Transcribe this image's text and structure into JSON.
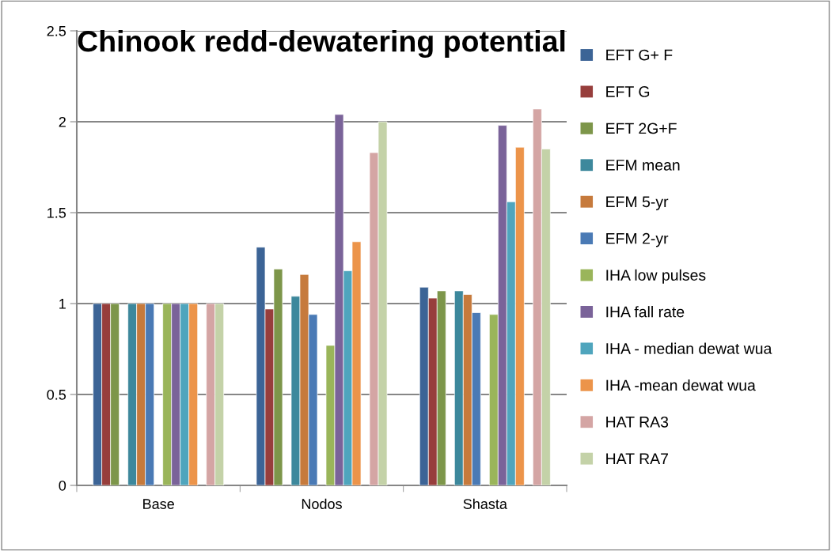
{
  "chart_data": {
    "type": "bar",
    "title": "Chinook redd-dewatering potential",
    "categories": [
      "Base",
      "Nodos",
      "Shasta"
    ],
    "ylim": [
      0,
      2.5
    ],
    "yticks": [
      0,
      0.5,
      1,
      1.5,
      2,
      2.5
    ],
    "grid": "y",
    "legend": "right",
    "series": [
      {
        "name": "EFT G+ F",
        "color": "#3c6496",
        "values": [
          1,
          1.31,
          1.09
        ]
      },
      {
        "name": "EFT G",
        "color": "#973e3c",
        "values": [
          1,
          0.97,
          1.03
        ]
      },
      {
        "name": "EFT 2G+F",
        "color": "#7d964a",
        "values": [
          1,
          1.19,
          1.07
        ]
      },
      {
        "values": [
          null,
          null,
          null
        ]
      },
      {
        "name": "EFM mean",
        "color": "#3d889c",
        "values": [
          1,
          1.04,
          1.07
        ]
      },
      {
        "name": "EFM 5-yr",
        "color": "#c67a3c",
        "values": [
          1,
          1.16,
          1.05
        ]
      },
      {
        "name": "EFM 2-yr",
        "color": "#4a7ab5",
        "values": [
          1,
          0.94,
          0.95
        ]
      },
      {
        "values": [
          null,
          null,
          null
        ]
      },
      {
        "name": "IHA low pulses",
        "color": "#9ab55a",
        "values": [
          1,
          0.77,
          0.94
        ]
      },
      {
        "name": "IHA fall rate",
        "color": "#7a6399",
        "values": [
          1,
          2.04,
          1.98
        ]
      },
      {
        "name": "IHA - median dewat wua",
        "color": "#4fa5bd",
        "values": [
          1,
          1.18,
          1.56
        ]
      },
      {
        "name": "IHA -mean dewat wua",
        "color": "#ec944a",
        "values": [
          1,
          1.34,
          1.86
        ]
      },
      {
        "values": [
          null,
          null,
          null
        ]
      },
      {
        "name": "HAT RA3",
        "color": "#d4a5a4",
        "values": [
          1,
          1.83,
          2.07
        ]
      },
      {
        "name": "HAT RA7",
        "color": "#c4d2a8",
        "values": [
          1,
          2.0,
          1.85
        ]
      }
    ]
  }
}
